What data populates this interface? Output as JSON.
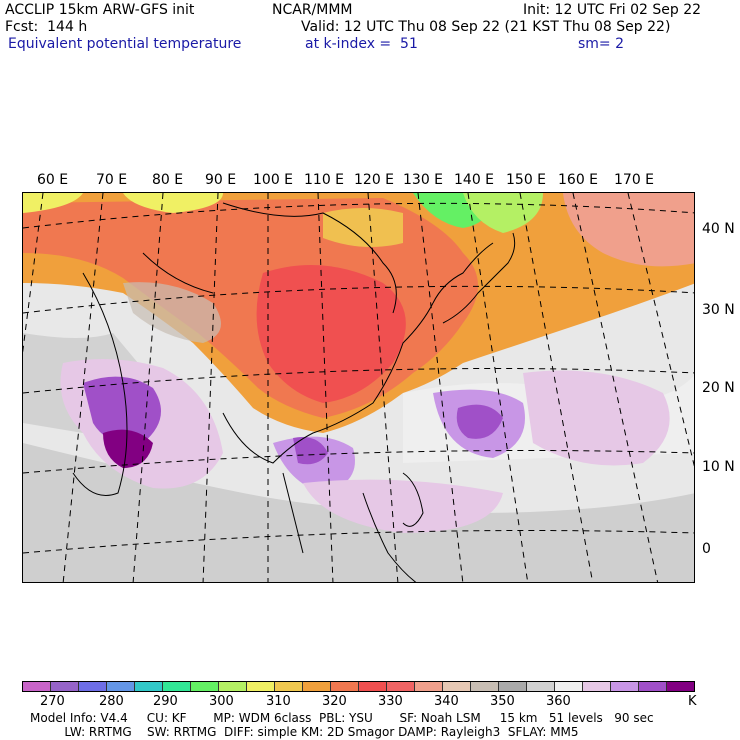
{
  "header": {
    "left1": "ACCLIP 15km ARW-GFS init",
    "left2": "Fcst:  144 h",
    "left3": "Equivalent potential temperature",
    "center1": "NCAR/MMM",
    "right1": "Init: 12 UTC Fri 02 Sep 22",
    "right2": "Valid: 12 UTC Thu 08 Sep 22 (21 KST Thu 08 Sep 22)",
    "level": "at k-index =  51",
    "smooth": "sm= 2"
  },
  "map": {
    "lon_labels": [
      "60 E",
      "70 E",
      "80 E",
      "90 E",
      "100 E",
      "110 E",
      "120 E",
      "130 E",
      "140 E",
      "150 E",
      "160 E",
      "170 E"
    ],
    "lat_labels": [
      "40 N",
      "30 N",
      "20 N",
      "10 N",
      "0"
    ]
  },
  "colorbar": {
    "colors": [
      "#c864c8",
      "#9664c8",
      "#6e6ee6",
      "#6496e6",
      "#32c8c8",
      "#32e696",
      "#64f064",
      "#b4f064",
      "#f0f064",
      "#f0c850",
      "#f0a03c",
      "#f07850",
      "#f05050",
      "#f06464",
      "#f0a08c",
      "#e6c8b4",
      "#c8beb4",
      "#aaaaaa",
      "#d2d2d2",
      "#f0f0f0",
      "#e6c8e6",
      "#c896e6",
      "#a050c8",
      "#820082"
    ],
    "ticks": [
      "270",
      "280",
      "290",
      "300",
      "310",
      "320",
      "330",
      "340",
      "350",
      "360",
      "K"
    ]
  },
  "footer": {
    "line1": "Model Info: V4.4     CU: KF       MP: WDM 6class  PBL: YSU       SF: Noah LSM     15 km   51 levels   90 sec",
    "line2": "         LW: RRTMG    SW: RRTMG  DIFF: simple KM: 2D Smagor DAMP: Rayleigh3  SFLAY: MM5"
  }
}
